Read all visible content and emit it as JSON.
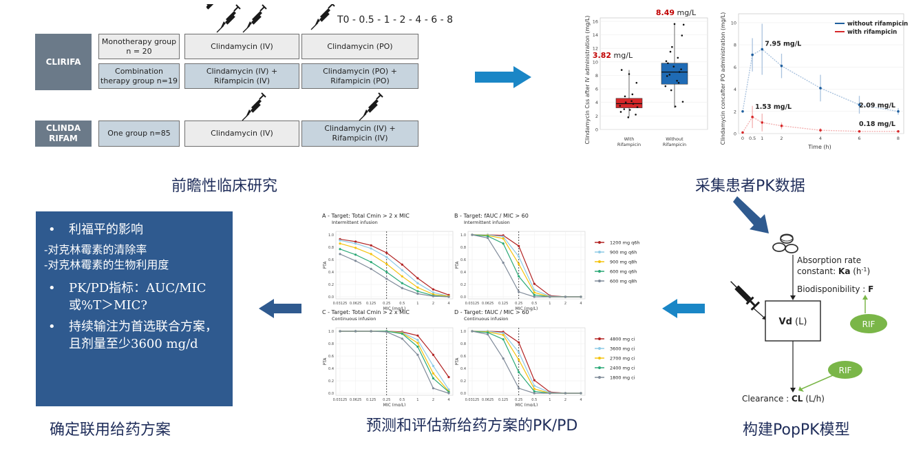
{
  "captions": {
    "study": "前瞻性临床研究",
    "collect": "采集患者PK数据",
    "model": "构建PopPK模型",
    "predict": "预测和评估新给药方案的PK/PD",
    "regimen": "确定联用给药方案"
  },
  "study": {
    "sampling": "T0 - 0.5 - 1 - 2 - 4 - 6 - 8",
    "clirifa": "CLIRIFA",
    "clindarifam": "CLINDA RIFAM",
    "mono_group": "Monotherapy group n = 20",
    "combo_group": "Combination therapy group n=19",
    "mono_iv": "Clindamycin (IV)",
    "mono_po": "Clindamycin (PO)",
    "combo_iv": "Clindamycin (IV) + Rifampicin (IV)",
    "combo_po": "Clindamycin (PO) + Rifampicin (PO)",
    "one_group": "One group n=85",
    "cr_iv": "Clindamycin (IV)",
    "cr_combo": "Clindamycin (IV) + Rifampicin (IV)"
  },
  "summary": {
    "b1": "利福平的影响",
    "s1": "-对克林霉素的清除率",
    "s2": "-对克林霉素的生物利用度",
    "b2": "PK/PD指标：AUC/MIC或%T＞MIC?",
    "b3": "持续输注为首选联合方案，且剂量至少3600 mg/d",
    "bullet": "•"
  },
  "model": {
    "absorption": "Absorption rate constant: Ka (h-1)",
    "abs_line1": "Absorption rate",
    "abs_line2a": "constant: ",
    "abs_ka": "Ka",
    "abs_unit": " (h",
    "abs_sup": "-1",
    "abs_close": ")",
    "bio_label": "Biodisponibility : ",
    "bio_F": "F",
    "vd": "Vd",
    "vd_unit": " (L)",
    "rif": "RIF",
    "clear_label": "Clearance : ",
    "clear_cl": "CL",
    "clear_unit": " (L/h)"
  },
  "colors": {
    "blue_dark": "#2f5a8f",
    "arrow": "#1a86c6",
    "red": "#d62728",
    "blue_pt": "#1f6bb5",
    "rif": "#7ab648"
  },
  "chart_data": [
    {
      "type": "box",
      "ylabel": "Clindamycin Css after IV administration (mg/L)",
      "categories": [
        "With Rifampicin",
        "Without Rifampicin"
      ],
      "annotations": [
        "3.82 mg/L",
        "8.49 mg/L"
      ],
      "medians": [
        3.82,
        8.49
      ],
      "yticks": [
        0,
        2,
        4,
        6,
        8,
        10,
        12,
        14,
        16
      ],
      "ylim": [
        0,
        16.5
      ],
      "box": [
        {
          "q1": 3.2,
          "q3": 4.6,
          "lo": 1.9,
          "hi": 8.8
        },
        {
          "q1": 6.7,
          "q3": 9.8,
          "lo": 3.2,
          "hi": 15.7
        }
      ],
      "points": [
        [
          3.5,
          4.2,
          3.0,
          2.2,
          1.8,
          2.6,
          5.2,
          4.9,
          6.9,
          8.2,
          8.8,
          3.8,
          4.0,
          3.3,
          2.9
        ],
        [
          6.4,
          7.2,
          8.1,
          8.9,
          9.3,
          10.1,
          10.6,
          11.5,
          13.9,
          15.6,
          7.9,
          6.9,
          5.8,
          4.1,
          3.4,
          9.8,
          8.5,
          12.2,
          15.5
        ]
      ]
    },
    {
      "type": "line",
      "ylabel": "Clindamycin concafter PO administration (mg/L)",
      "xlabel": "Time (h)",
      "xticks": [
        0,
        0.5,
        1,
        2,
        4,
        6,
        8
      ],
      "yticks": [
        0,
        2,
        4,
        6,
        8,
        10
      ],
      "ylim": [
        0,
        10.8
      ],
      "series": [
        {
          "name": "without rifampicin",
          "x": [
            0,
            0.5,
            1,
            2,
            4,
            6,
            8
          ],
          "y": [
            2.0,
            7.1,
            7.6,
            6.1,
            4.1,
            2.6,
            2.0
          ]
        },
        {
          "name": "with rifampicin",
          "x": [
            0,
            0.5,
            1,
            2,
            4,
            6,
            8
          ],
          "y": [
            0.1,
            1.5,
            1.0,
            0.7,
            0.3,
            0.2,
            0.2
          ]
        }
      ],
      "annotations": [
        "7.95 mg/L",
        "1.53 mg/L",
        "2.09 mg/L",
        "0.18 mg/L"
      ]
    },
    {
      "type": "line",
      "panels": [
        {
          "title": "A - Target: Total Cmin > 2 x MIC",
          "subtitle": "Intermittent infusion",
          "series": [
            [
              0.93,
              0.89,
              0.83,
              0.71,
              0.52,
              0.3,
              0.12,
              0.03
            ],
            [
              0.91,
              0.86,
              0.78,
              0.64,
              0.43,
              0.22,
              0.07,
              0.01
            ],
            [
              0.86,
              0.79,
              0.69,
              0.53,
              0.33,
              0.15,
              0.04,
              0.01
            ],
            [
              0.77,
              0.68,
              0.56,
              0.4,
              0.22,
              0.09,
              0.02,
              0.0
            ],
            [
              0.69,
              0.58,
              0.45,
              0.29,
              0.14,
              0.05,
              0.01,
              0.0
            ]
          ]
        },
        {
          "title": "B - Target: fAUC / MIC > 60",
          "subtitle": "Intermittent infusion",
          "series": [
            [
              1.0,
              1.0,
              0.99,
              0.82,
              0.21,
              0.02,
              0.0,
              0.0
            ],
            [
              1.0,
              1.0,
              0.97,
              0.65,
              0.11,
              0.01,
              0.0,
              0.0
            ],
            [
              1.0,
              0.99,
              0.94,
              0.53,
              0.07,
              0.0,
              0.0,
              0.0
            ],
            [
              1.0,
              0.98,
              0.86,
              0.33,
              0.03,
              0.0,
              0.0,
              0.0
            ],
            [
              1.0,
              0.95,
              0.55,
              0.08,
              0.0,
              0.0,
              0.0,
              0.0
            ]
          ]
        },
        {
          "title": "C - Target: Total Cmin > 2 x MIC",
          "subtitle": "Continuous infusion",
          "series": [
            [
              1.0,
              1.0,
              1.0,
              1.0,
              0.99,
              0.93,
              0.62,
              0.26
            ],
            [
              1.0,
              1.0,
              1.0,
              1.0,
              0.98,
              0.86,
              0.44,
              0.06
            ],
            [
              1.0,
              1.0,
              1.0,
              1.0,
              0.97,
              0.81,
              0.32,
              0.03
            ],
            [
              1.0,
              1.0,
              1.0,
              1.0,
              0.96,
              0.75,
              0.24,
              0.02
            ],
            [
              1.0,
              1.0,
              1.0,
              0.99,
              0.88,
              0.62,
              0.08,
              0.0
            ]
          ]
        },
        {
          "title": "D - Target: fAUC / MIC > 60",
          "subtitle": "Continuous infusion",
          "series": [
            [
              1.0,
              1.0,
              0.99,
              0.82,
              0.21,
              0.02,
              0.0,
              0.0
            ],
            [
              1.0,
              1.0,
              0.97,
              0.66,
              0.12,
              0.01,
              0.0,
              0.0
            ],
            [
              1.0,
              0.99,
              0.94,
              0.54,
              0.07,
              0.0,
              0.0,
              0.0
            ],
            [
              1.0,
              0.98,
              0.87,
              0.34,
              0.03,
              0.0,
              0.0,
              0.0
            ],
            [
              1.0,
              0.95,
              0.56,
              0.08,
              0.0,
              0.0,
              0.0,
              0.0
            ]
          ]
        }
      ],
      "xticks": [
        "0.03125",
        "0.0625",
        "0.125",
        "0.25",
        "0.5",
        "1",
        "2",
        "4"
      ],
      "yticks": [
        "0.0",
        "0.2",
        "0.4",
        "0.6",
        "0.8",
        "1.0"
      ],
      "xlabel": "MIC (mg/L)",
      "ylabel": "PTA",
      "legend_top": [
        "1200 mg q6h",
        "900 mg q6h",
        "900 mg q8h",
        "600 mg q6h",
        "600 mg q8h"
      ],
      "legend_bottom": [
        "4800 mg ci",
        "3600 mg ci",
        "2700 mg ci",
        "2400 mg ci",
        "1800 mg ci"
      ],
      "series_colors": [
        "#b22222",
        "#8ecae6",
        "#f4c20d",
        "#2aa876",
        "#7f8a99"
      ]
    }
  ]
}
